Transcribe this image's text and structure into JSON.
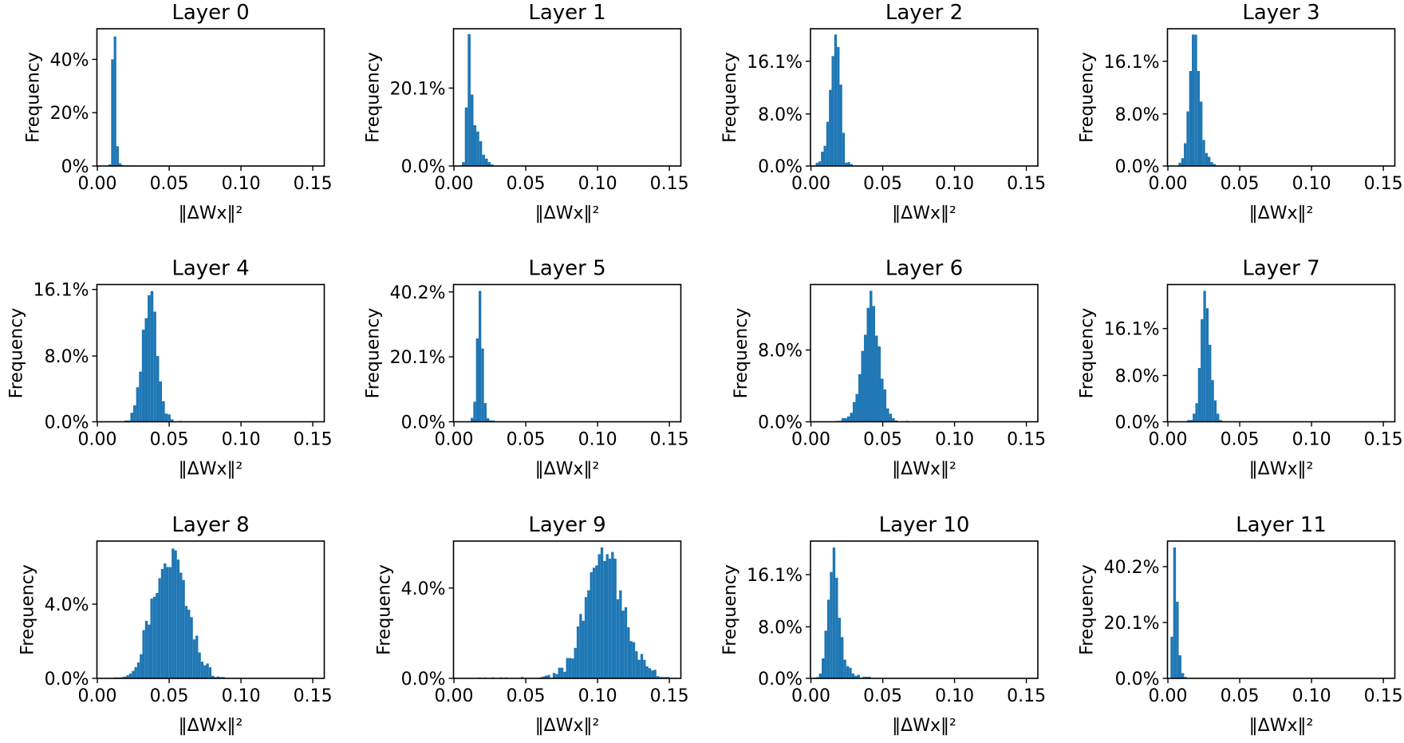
{
  "chart_data": [
    {
      "type": "bar",
      "title": "Layer 0",
      "xlabel": "‖ΔWx‖²",
      "ylabel": "Frequency",
      "xlim": [
        -0.0003,
        0.158
      ],
      "ylim": [
        0,
        51.5
      ],
      "xticks": [
        0,
        0.05,
        0.1,
        0.15
      ],
      "xtick_labels": [
        "0.00",
        "0.05",
        "0.10",
        "0.15"
      ],
      "yticks": [
        0,
        20,
        40
      ],
      "ytick_labels": [
        "0%",
        "20%",
        "40%"
      ],
      "bin_start": 0.0078,
      "bin_width": 0.0018,
      "values": [
        0.6,
        40,
        48.6,
        7.4,
        1.0,
        0.3,
        0.2,
        0.2,
        0.2,
        0.2
      ]
    },
    {
      "type": "bar",
      "title": "Layer 1",
      "xlabel": "‖ΔWx‖²",
      "ylabel": "Frequency",
      "xlim": [
        -0.0003,
        0.158
      ],
      "ylim": [
        0,
        35.4
      ],
      "xticks": [
        0,
        0.05,
        0.1,
        0.15
      ],
      "xtick_labels": [
        "0.00",
        "0.05",
        "0.10",
        "0.15"
      ],
      "yticks": [
        0,
        20.1
      ],
      "ytick_labels": [
        "0.0%",
        "20.1%"
      ],
      "bin_start": 0.0056,
      "bin_width": 0.002,
      "values": [
        1.0,
        15.1,
        34,
        18.4,
        10.5,
        8.9,
        6.4,
        2.9,
        1.9,
        1.0,
        0.4
      ]
    },
    {
      "type": "bar",
      "title": "Layer 2",
      "xlabel": "‖ΔWx‖²",
      "ylabel": "Frequency",
      "xlim": [
        -0.0003,
        0.158
      ],
      "ylim": [
        0,
        21.1
      ],
      "xticks": [
        0,
        0.05,
        0.1,
        0.15
      ],
      "xtick_labels": [
        "0.00",
        "0.05",
        "0.10",
        "0.15"
      ],
      "yticks": [
        0,
        8.0,
        16.1
      ],
      "ytick_labels": [
        "0.0%",
        "8.0%",
        "16.1%"
      ],
      "bin_start": 0.0033,
      "bin_width": 0.00185,
      "values": [
        0.5,
        0.7,
        2.2,
        3.1,
        6.8,
        11.7,
        16.9,
        20.2,
        18.3,
        12.5,
        5.1,
        0.5,
        0.6,
        0.3
      ]
    },
    {
      "type": "bar",
      "title": "Layer 3",
      "xlabel": "‖ΔWx‖²",
      "ylabel": "Frequency",
      "xlim": [
        -0.0003,
        0.158
      ],
      "ylim": [
        0,
        21.1
      ],
      "xticks": [
        0,
        0.05,
        0.1,
        0.15
      ],
      "xtick_labels": [
        "0.00",
        "0.05",
        "0.10",
        "0.15"
      ],
      "yticks": [
        0,
        8.0,
        16.1
      ],
      "ytick_labels": [
        "0.0%",
        "8.0%",
        "16.1%"
      ],
      "bin_start": 0.0074,
      "bin_width": 0.00185,
      "values": [
        0.5,
        1.2,
        3.5,
        8.4,
        14.6,
        20.2,
        20.2,
        14.6,
        9.9,
        4.0,
        2.0,
        1.4,
        0.6,
        0.3
      ]
    },
    {
      "type": "bar",
      "title": "Layer 4",
      "xlabel": "‖ΔWx‖²",
      "ylabel": "Frequency",
      "xlim": [
        -0.0003,
        0.158
      ],
      "ylim": [
        0,
        16.7
      ],
      "xticks": [
        0,
        0.05,
        0.1,
        0.15
      ],
      "xtick_labels": [
        "0.00",
        "0.05",
        "0.10",
        "0.15"
      ],
      "yticks": [
        0,
        8.0,
        16.1
      ],
      "ytick_labels": [
        "0.0%",
        "8.0%",
        "16.1%"
      ],
      "bin_start": 0.019,
      "bin_width": 0.002,
      "values": [
        0.15,
        0.15,
        1.1,
        2.0,
        4.2,
        6.1,
        11.2,
        12.6,
        15.4,
        15.9,
        13.4,
        8.0,
        4.9,
        2.5,
        1.0,
        0.9,
        0.3,
        0,
        0,
        0.1
      ]
    },
    {
      "type": "bar",
      "title": "Layer 5",
      "xlabel": "‖ΔWx‖²",
      "ylabel": "Frequency",
      "xlim": [
        -0.0003,
        0.158
      ],
      "ylim": [
        0,
        42.5
      ],
      "xticks": [
        0,
        0.05,
        0.1,
        0.15
      ],
      "xtick_labels": [
        "0.00",
        "0.05",
        "0.10",
        "0.15"
      ],
      "yticks": [
        0,
        20.1,
        40.2
      ],
      "ytick_labels": [
        "0.0%",
        "20.1%",
        "40.2%"
      ],
      "bin_start": 0.0098,
      "bin_width": 0.00185,
      "values": [
        0.1,
        1.2,
        6.2,
        25.8,
        40.5,
        22.7,
        5.8,
        1.1,
        0.4,
        0.4
      ]
    },
    {
      "type": "bar",
      "title": "Layer 6",
      "xlabel": "‖ΔWx‖²",
      "ylabel": "Frequency",
      "xlim": [
        -0.0003,
        0.158
      ],
      "ylim": [
        0,
        15.3
      ],
      "xticks": [
        0,
        0.05,
        0.1,
        0.15
      ],
      "xtick_labels": [
        "0.00",
        "0.05",
        "0.10",
        "0.15"
      ],
      "yticks": [
        0,
        8.0
      ],
      "ytick_labels": [
        "0.0%",
        "8.0%"
      ],
      "bin_start": 0.0174,
      "bin_width": 0.00195,
      "values": [
        0.1,
        0.1,
        0.4,
        0.4,
        0.6,
        1.0,
        2.2,
        3.1,
        5.3,
        7.9,
        9.7,
        12.7,
        14.6,
        12.9,
        9.6,
        8.4,
        4.8,
        3.6,
        1.5,
        0.9,
        0.4,
        0.15,
        0,
        0,
        0,
        0.1
      ]
    },
    {
      "type": "bar",
      "title": "Layer 7",
      "xlabel": "‖ΔWx‖²",
      "ylabel": "Frequency",
      "xlim": [
        -0.0003,
        0.158
      ],
      "ylim": [
        0,
        23.7
      ],
      "xticks": [
        0,
        0.05,
        0.1,
        0.15
      ],
      "xtick_labels": [
        "0.00",
        "0.05",
        "0.10",
        "0.15"
      ],
      "yticks": [
        0,
        8.0,
        16.1
      ],
      "ytick_labels": [
        "0.0%",
        "8.0%",
        "16.1%"
      ],
      "bin_start": 0.0117,
      "bin_width": 0.00185,
      "values": [
        0.1,
        0.3,
        0.3,
        1.4,
        3.2,
        9.3,
        17.7,
        22.6,
        19.6,
        13.3,
        7.2,
        3.7,
        1.4,
        0.3
      ]
    },
    {
      "type": "bar",
      "title": "Layer 8",
      "xlabel": "‖ΔWx‖²",
      "ylabel": "Frequency",
      "xlim": [
        -0.0003,
        0.158
      ],
      "ylim": [
        0,
        7.4
      ],
      "xticks": [
        0,
        0.05,
        0.1,
        0.15
      ],
      "xtick_labels": [
        "0.00",
        "0.05",
        "0.10",
        "0.15"
      ],
      "yticks": [
        0,
        4.0
      ],
      "ytick_labels": [
        "0.0%",
        "4.0%"
      ],
      "bin_start": 0.011,
      "bin_width": 0.00185,
      "values": [
        0.05,
        0.05,
        0.05,
        0.07,
        0.1,
        0.17,
        0.26,
        0.4,
        0.6,
        0.86,
        1.3,
        2.6,
        3.1,
        2.9,
        4.3,
        4.4,
        4.6,
        5.4,
        5.9,
        6.2,
        6.0,
        6.0,
        7.0,
        6.9,
        6.4,
        5.7,
        5.3,
        3.9,
        3.7,
        3.3,
        2.1,
        2.3,
        1.4,
        0.9,
        0.7,
        0.8,
        0.6,
        0.14,
        0.07,
        0.1,
        0.07,
        0.07
      ]
    },
    {
      "type": "bar",
      "title": "Layer 9",
      "xlabel": "‖ΔWx‖²",
      "ylabel": "Frequency",
      "xlim": [
        -0.0003,
        0.158
      ],
      "ylim": [
        0,
        6.08
      ],
      "xticks": [
        0,
        0.05,
        0.1,
        0.15
      ],
      "xtick_labels": [
        "0.00",
        "0.05",
        "0.10",
        "0.15"
      ],
      "yticks": [
        0,
        4.0
      ],
      "ytick_labels": [
        "0.0%",
        "4.0%"
      ],
      "bin_start": 0.017,
      "bin_width": 0.00185,
      "values": [
        0.04,
        0,
        0.04,
        0,
        0,
        0.04,
        0,
        0,
        0.04,
        0,
        0.04,
        0,
        0,
        0,
        0,
        0,
        0.06,
        0,
        0,
        0,
        0,
        0,
        0.02,
        0.05,
        0.08,
        0.12,
        0.15,
        0,
        0.24,
        0.19,
        0.47,
        0.47,
        0.29,
        0.9,
        0.9,
        0.88,
        1.35,
        2.3,
        2.85,
        2.55,
        3.6,
        3.9,
        4.7,
        4.9,
        5.0,
        5.5,
        5.8,
        5.2,
        5.5,
        5.3,
        5.6,
        5.3,
        3.5,
        3.9,
        3.0,
        3.15,
        2.26,
        1.65,
        1.6,
        1.2,
        0.82,
        1.08,
        0.82,
        0.53,
        0.45,
        0.35,
        0.38,
        0.1,
        0.06,
        0.06,
        0.06,
        0.06
      ]
    },
    {
      "type": "bar",
      "title": "Layer 10",
      "xlabel": "‖ΔWx‖²",
      "ylabel": "Frequency",
      "xlim": [
        -0.0003,
        0.158
      ],
      "ylim": [
        0,
        21.3
      ],
      "xticks": [
        0,
        0.05,
        0.1,
        0.15
      ],
      "xtick_labels": [
        "0.00",
        "0.05",
        "0.10",
        "0.15"
      ],
      "yticks": [
        0,
        8.0,
        16.1
      ],
      "ytick_labels": [
        "0.0%",
        "8.0%",
        "16.1%"
      ],
      "bin_start": 0.0018,
      "bin_width": 0.0019,
      "values": [
        0.1,
        0.2,
        0.75,
        3.1,
        7.4,
        12.2,
        16.5,
        20.3,
        15.6,
        9.4,
        6.4,
        2.9,
        1.9,
        1.65,
        0.75,
        0.4,
        0.55,
        0.1,
        0.25,
        0.25,
        0.25
      ]
    },
    {
      "type": "bar",
      "title": "Layer 11",
      "xlabel": "‖ΔWx‖²",
      "ylabel": "Frequency",
      "xlim": [
        -0.0003,
        0.158
      ],
      "ylim": [
        0,
        49.4
      ],
      "xticks": [
        0,
        0.05,
        0.1,
        0.15
      ],
      "xtick_labels": [
        "0.00",
        "0.05",
        "0.10",
        "0.15"
      ],
      "yticks": [
        0,
        20.1,
        40.2
      ],
      "ytick_labels": [
        "0.0%",
        "20.1%",
        "40.2%"
      ],
      "bin_start": 0.0018,
      "bin_width": 0.0019,
      "values": [
        15.0,
        47.1,
        27.6,
        8.3,
        1.9,
        0.5
      ]
    }
  ],
  "colors": {
    "bar": "#1f77b4",
    "axes": "#000000"
  }
}
